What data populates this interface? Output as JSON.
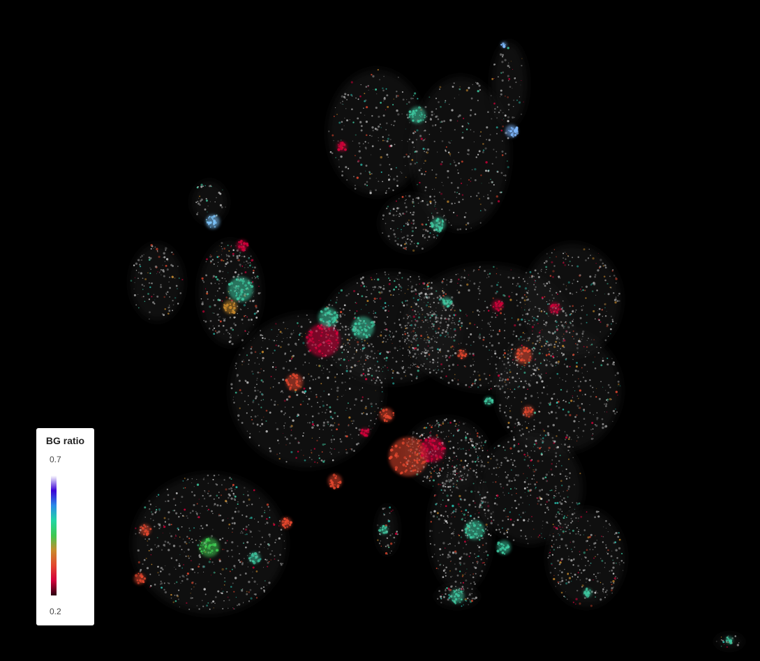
{
  "map": {
    "region": "Europe",
    "background_color": "#000000",
    "land_glow_color": "#8a8a8a"
  },
  "legend": {
    "title": "BG ratio",
    "max_label": "0.7",
    "min_label": "0.2",
    "gradient_colors": [
      "#ffffff",
      "#3a00d6",
      "#2a8ae8",
      "#22d6a4",
      "#3ec850",
      "#c98a2c",
      "#e3472e",
      "#d3003a",
      "#2a0010"
    ]
  }
}
